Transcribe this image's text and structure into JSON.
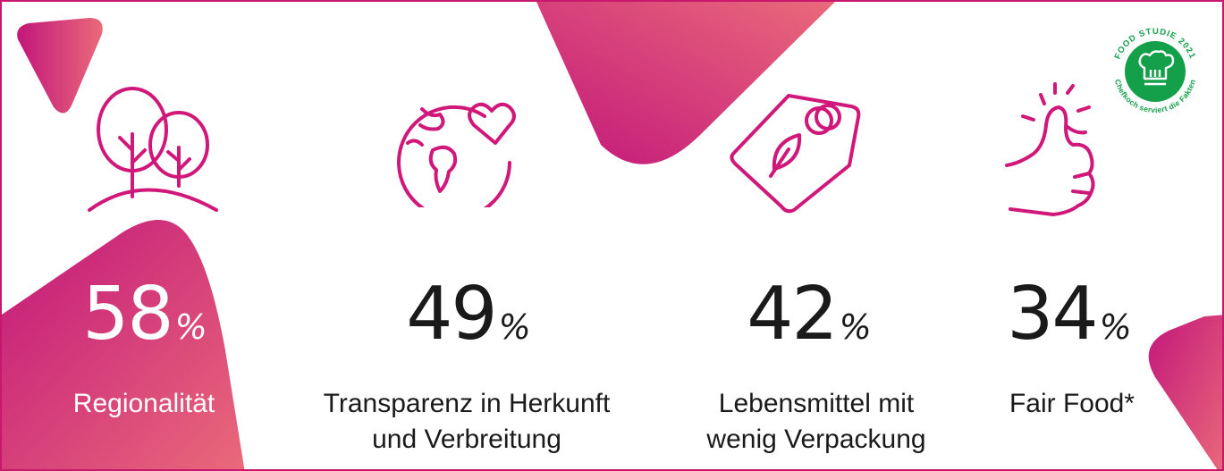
{
  "colors": {
    "accent": "#c8186e",
    "gradient_start": "#c2167a",
    "gradient_end": "#ea6a7a",
    "badge_green": "#14a04a",
    "text": "#1a1a1a"
  },
  "stats": [
    {
      "value": "58",
      "unit": "%",
      "label_line1": "Regionalität",
      "label_line2": "",
      "icon": "trees-icon"
    },
    {
      "value": "49",
      "unit": "%",
      "label_line1": "Transparenz in Herkunft",
      "label_line2": "und Verbreitung",
      "icon": "globe-heart-icon"
    },
    {
      "value": "42",
      "unit": "%",
      "label_line1": "Lebensmittel mit",
      "label_line2": "wenig Verpackung",
      "icon": "eco-tag-icon"
    },
    {
      "value": "34",
      "unit": "%",
      "label_line1": "Fair Food*",
      "label_line2": "",
      "icon": "thumbs-up-icon"
    }
  ],
  "badge": {
    "top_text": "FOOD STUDIE 2021",
    "bottom_text": "Chefkoch serviert die Fakten",
    "icon": "chef-hat-icon"
  }
}
